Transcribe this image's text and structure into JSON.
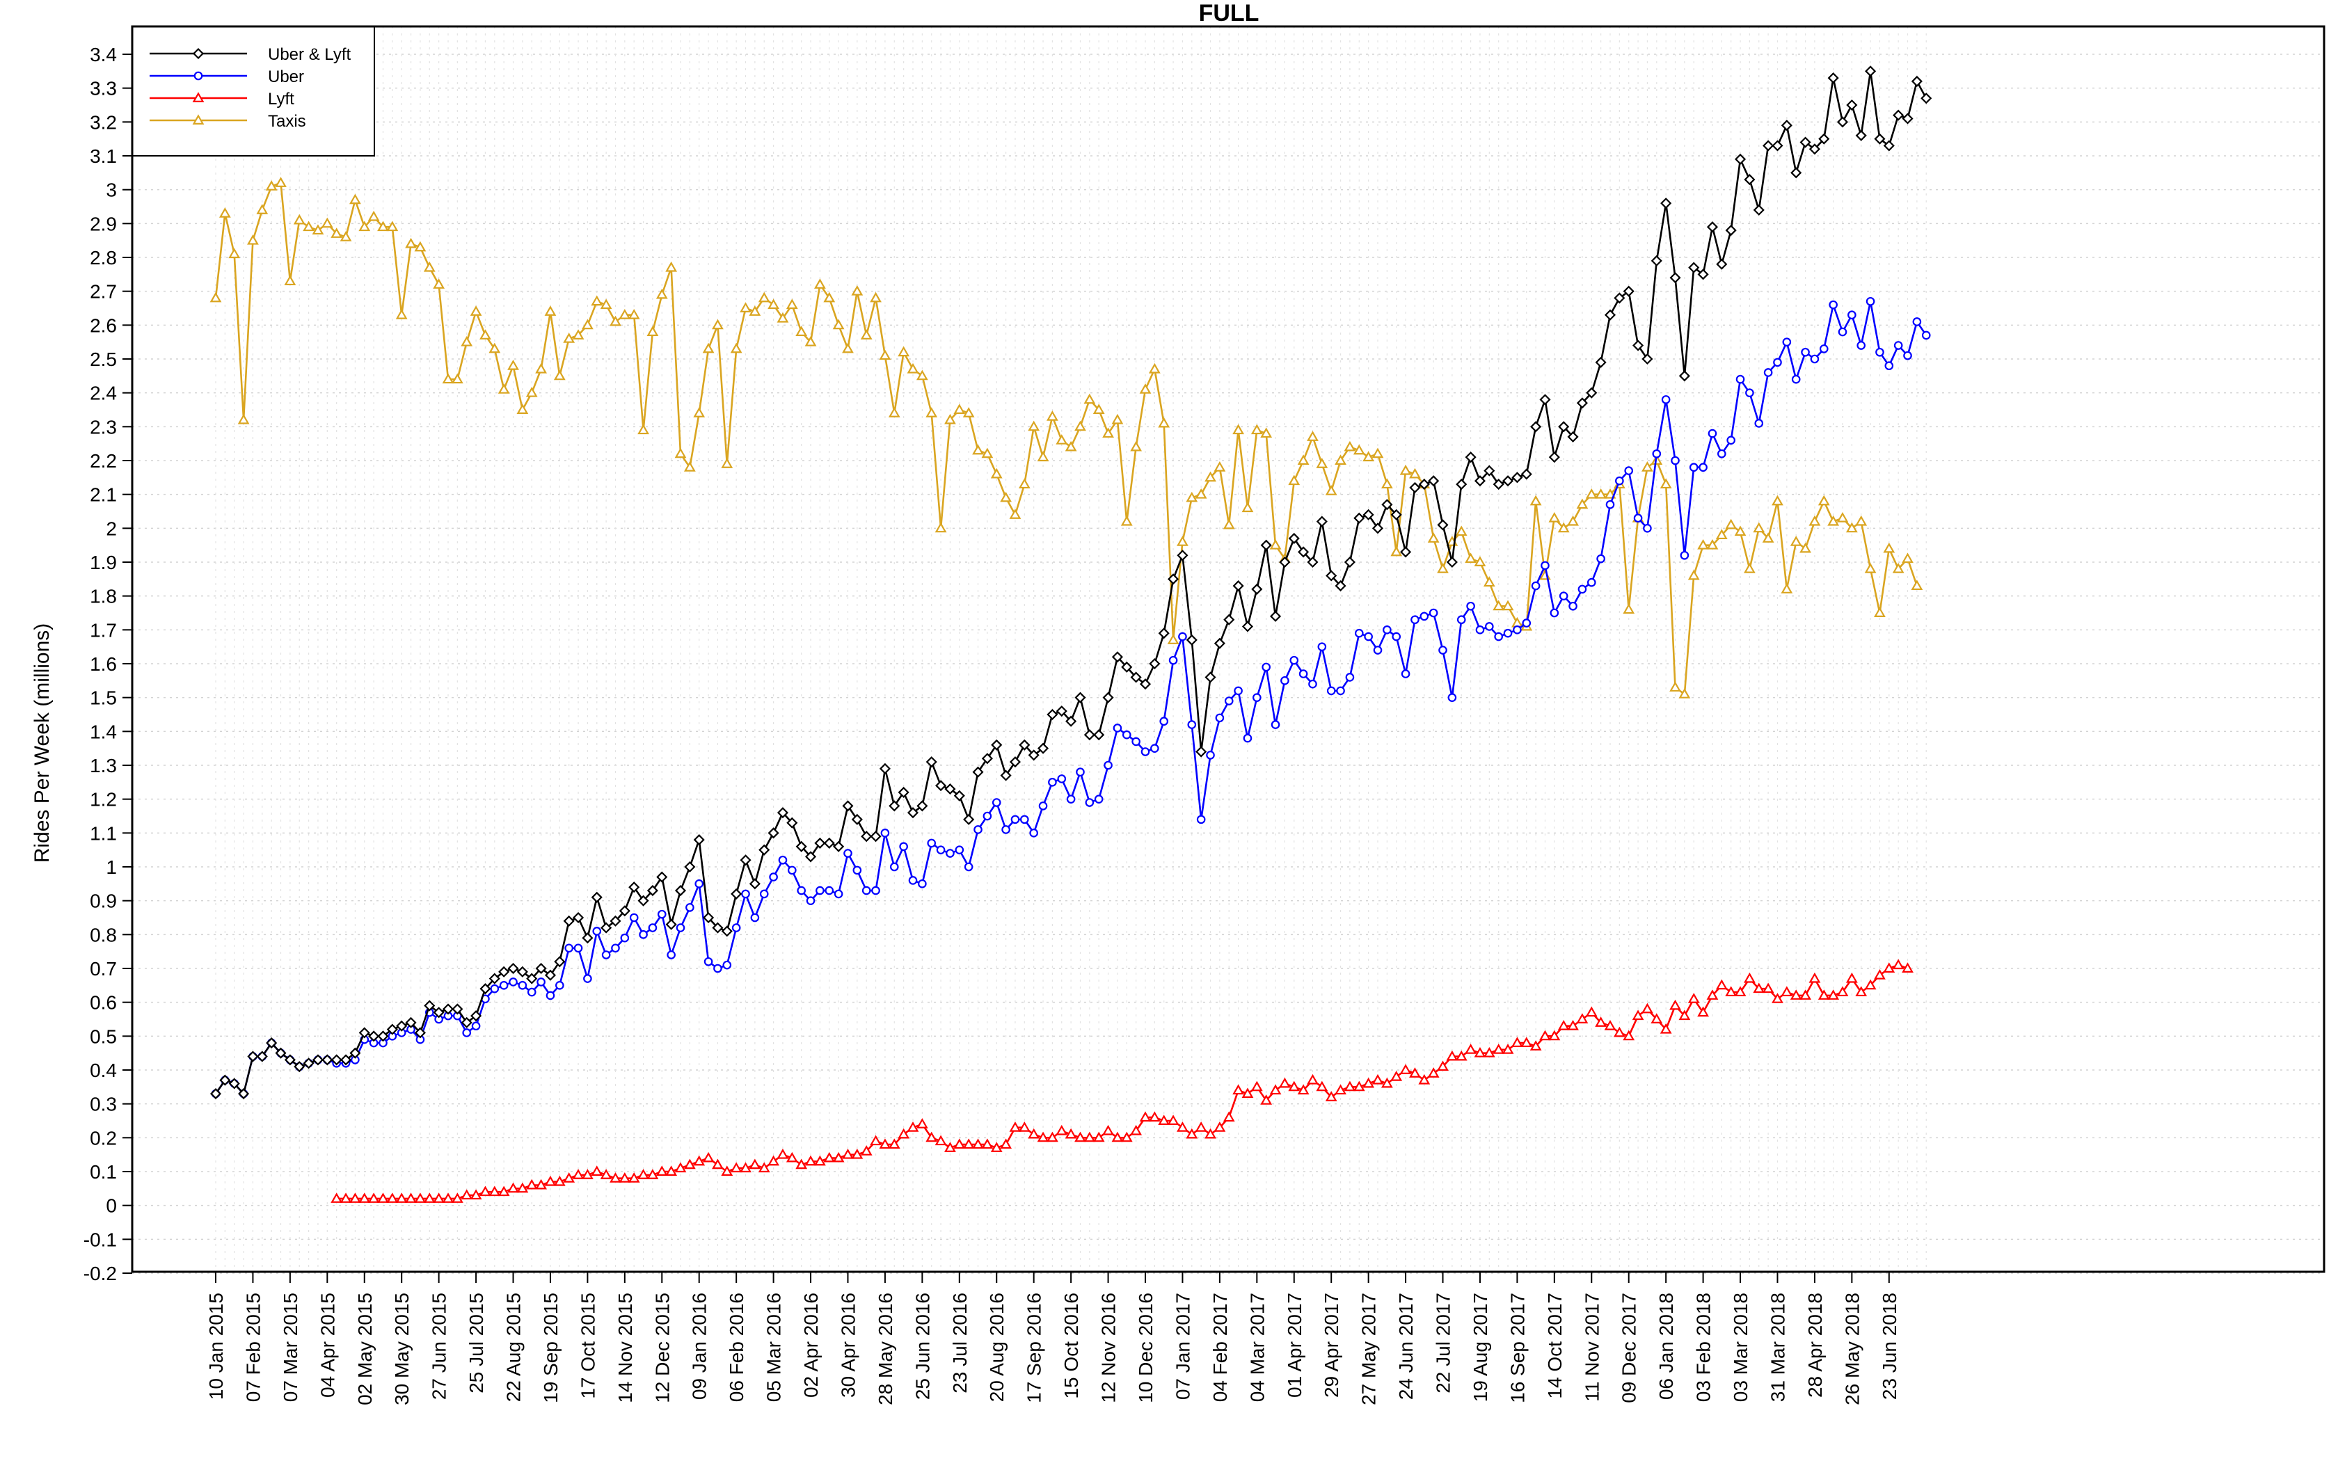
{
  "chart_data": {
    "type": "line",
    "title": "FULL",
    "xlabel": "",
    "ylabel": "Rides Per Week (millions)",
    "ylim": [
      -0.2,
      3.4
    ],
    "yticks": [
      -0.2,
      -0.1,
      0,
      0.1,
      0.2,
      0.3,
      0.4,
      0.5,
      0.6,
      0.7,
      0.8,
      0.9,
      1,
      1.1,
      1.2,
      1.3,
      1.4,
      1.5,
      1.6,
      1.7,
      1.8,
      1.9,
      2,
      2.1,
      2.2,
      2.3,
      2.4,
      2.5,
      2.6,
      2.7,
      2.8,
      2.9,
      3,
      3.1,
      3.2,
      3.3,
      3.4
    ],
    "grid": true,
    "legend_position": "top-left",
    "x_start": "10 Jan 2015",
    "x_interval": "weekly",
    "x_tick_labels": [
      "10 Jan 2015",
      "07 Feb 2015",
      "07 Mar 2015",
      "04 Apr 2015",
      "02 May 2015",
      "30 May 2015",
      "27 Jun 2015",
      "25 Jul 2015",
      "22 Aug 2015",
      "19 Sep 2015",
      "17 Oct 2015",
      "14 Nov 2015",
      "12 Dec 2015",
      "09 Jan 2016",
      "06 Feb 2016",
      "05 Mar 2016",
      "02 Apr 2016",
      "30 Apr 2016",
      "28 May 2016",
      "25 Jun 2016",
      "23 Jul 2016",
      "20 Aug 2016",
      "17 Sep 2016",
      "15 Oct 2016",
      "12 Nov 2016",
      "10 Dec 2016",
      "07 Jan 2017",
      "04 Feb 2017",
      "04 Mar 2017",
      "01 Apr 2017",
      "29 Apr 2017",
      "27 May 2017",
      "24 Jun 2017",
      "22 Jul 2017",
      "19 Aug 2017",
      "16 Sep 2017",
      "14 Oct 2017",
      "11 Nov 2017",
      "09 Dec 2017",
      "06 Jan 2018",
      "03 Feb 2018",
      "03 Mar 2018",
      "31 Mar 2018",
      "28 Apr 2018",
      "26 May 2018",
      "23 Jun 2018"
    ],
    "series": [
      {
        "name": "Uber & Lyft",
        "color": "#000000",
        "marker": "diamond",
        "values": [
          0.33,
          0.37,
          0.36,
          0.33,
          0.44,
          0.44,
          0.48,
          0.45,
          0.43,
          0.41,
          0.42,
          0.43,
          0.43,
          0.43,
          0.43,
          0.45,
          0.51,
          0.5,
          0.5,
          0.52,
          0.53,
          0.54,
          0.51,
          0.59,
          0.57,
          0.58,
          0.58,
          0.54,
          0.56,
          0.64,
          0.67,
          0.69,
          0.7,
          0.69,
          0.67,
          0.7,
          0.68,
          0.72,
          0.84,
          0.85,
          0.79,
          0.91,
          0.82,
          0.84,
          0.87,
          0.94,
          0.9,
          0.93,
          0.97,
          0.83,
          0.93,
          1.0,
          1.08,
          0.85,
          0.82,
          0.81,
          0.92,
          1.02,
          0.95,
          1.05,
          1.1,
          1.16,
          1.13,
          1.06,
          1.03,
          1.07,
          1.07,
          1.06,
          1.18,
          1.14,
          1.09,
          1.09,
          1.29,
          1.18,
          1.22,
          1.16,
          1.18,
          1.31,
          1.24,
          1.23,
          1.21,
          1.14,
          1.28,
          1.32,
          1.36,
          1.27,
          1.31,
          1.36,
          1.33,
          1.35,
          1.45,
          1.46,
          1.43,
          1.5,
          1.39,
          1.39,
          1.5,
          1.62,
          1.59,
          1.56,
          1.54,
          1.6,
          1.69,
          1.85,
          1.92,
          1.67,
          1.34,
          1.56,
          1.66,
          1.73,
          1.83,
          1.71,
          1.82,
          1.95,
          1.74,
          1.9,
          1.97,
          1.93,
          1.9,
          2.02,
          1.86,
          1.83,
          1.9,
          2.03,
          2.04,
          2.0,
          2.07,
          2.04,
          1.93,
          2.12,
          2.13,
          2.14,
          2.01,
          1.9,
          2.13,
          2.21,
          2.14,
          2.17,
          2.13,
          2.14,
          2.15,
          2.16,
          2.3,
          2.38,
          2.21,
          2.3,
          2.27,
          2.37,
          2.4,
          2.49,
          2.63,
          2.68,
          2.7,
          2.54,
          2.5,
          2.79,
          2.96,
          2.74,
          2.45,
          2.77,
          2.75,
          2.89,
          2.78,
          2.88,
          3.09,
          3.03,
          2.94,
          3.13,
          3.13,
          3.19,
          3.05,
          3.14,
          3.12,
          3.15,
          3.33,
          3.2,
          3.25,
          3.16,
          3.35,
          3.15,
          3.13,
          3.22,
          3.21,
          3.32,
          3.27
        ]
      },
      {
        "name": "Uber",
        "color": "#0000ff",
        "marker": "circle",
        "values": [
          0.33,
          0.37,
          0.36,
          0.33,
          0.44,
          0.44,
          0.48,
          0.45,
          0.43,
          0.41,
          0.42,
          0.43,
          0.43,
          0.42,
          0.42,
          0.43,
          0.49,
          0.48,
          0.48,
          0.5,
          0.51,
          0.52,
          0.49,
          0.57,
          0.55,
          0.56,
          0.56,
          0.51,
          0.53,
          0.61,
          0.64,
          0.65,
          0.66,
          0.65,
          0.63,
          0.66,
          0.62,
          0.65,
          0.76,
          0.76,
          0.67,
          0.81,
          0.74,
          0.76,
          0.79,
          0.85,
          0.8,
          0.82,
          0.86,
          0.74,
          0.82,
          0.88,
          0.95,
          0.72,
          0.7,
          0.71,
          0.82,
          0.92,
          0.85,
          0.92,
          0.97,
          1.02,
          0.99,
          0.93,
          0.9,
          0.93,
          0.93,
          0.92,
          1.04,
          0.99,
          0.93,
          0.93,
          1.1,
          1.0,
          1.06,
          0.96,
          0.95,
          1.07,
          1.05,
          1.04,
          1.05,
          1.0,
          1.11,
          1.15,
          1.19,
          1.11,
          1.14,
          1.14,
          1.1,
          1.18,
          1.25,
          1.26,
          1.2,
          1.28,
          1.19,
          1.2,
          1.3,
          1.41,
          1.39,
          1.37,
          1.34,
          1.35,
          1.43,
          1.61,
          1.68,
          1.42,
          1.14,
          1.33,
          1.44,
          1.49,
          1.52,
          1.38,
          1.5,
          1.59,
          1.42,
          1.55,
          1.61,
          1.57,
          1.54,
          1.65,
          1.52,
          1.52,
          1.56,
          1.69,
          1.68,
          1.64,
          1.7,
          1.68,
          1.57,
          1.73,
          1.74,
          1.75,
          1.64,
          1.5,
          1.73,
          1.77,
          1.7,
          1.71,
          1.68,
          1.69,
          1.7,
          1.72,
          1.83,
          1.89,
          1.75,
          1.8,
          1.77,
          1.82,
          1.84,
          1.91,
          2.07,
          2.14,
          2.17,
          2.03,
          2.0,
          2.22,
          2.38,
          2.2,
          1.92,
          2.18,
          2.18,
          2.28,
          2.22,
          2.26,
          2.44,
          2.4,
          2.31,
          2.46,
          2.49,
          2.55,
          2.44,
          2.52,
          2.5,
          2.53,
          2.66,
          2.58,
          2.63,
          2.54,
          2.67,
          2.52,
          2.48,
          2.54,
          2.51,
          2.61,
          2.57
        ]
      },
      {
        "name": "Lyft",
        "color": "#ff0000",
        "marker": "triangle",
        "values": [
          null,
          null,
          null,
          null,
          null,
          null,
          null,
          null,
          null,
          null,
          null,
          null,
          null,
          0.02,
          0.02,
          0.02,
          0.02,
          0.02,
          0.02,
          0.02,
          0.02,
          0.02,
          0.02,
          0.02,
          0.02,
          0.02,
          0.02,
          0.03,
          0.03,
          0.04,
          0.04,
          0.04,
          0.05,
          0.05,
          0.06,
          0.06,
          0.07,
          0.07,
          0.08,
          0.09,
          0.09,
          0.1,
          0.09,
          0.08,
          0.08,
          0.08,
          0.09,
          0.09,
          0.1,
          0.1,
          0.11,
          0.12,
          0.13,
          0.14,
          0.12,
          0.1,
          0.11,
          0.11,
          0.12,
          0.11,
          0.13,
          0.15,
          0.14,
          0.12,
          0.13,
          0.13,
          0.14,
          0.14,
          0.15,
          0.15,
          0.16,
          0.19,
          0.18,
          0.18,
          0.21,
          0.23,
          0.24,
          0.2,
          0.19,
          0.17,
          0.18,
          0.18,
          0.18,
          0.18,
          0.17,
          0.18,
          0.23,
          0.23,
          0.21,
          0.2,
          0.2,
          0.22,
          0.21,
          0.2,
          0.2,
          0.2,
          0.22,
          0.2,
          0.2,
          0.22,
          0.26,
          0.26,
          0.25,
          0.25,
          0.23,
          0.21,
          0.23,
          0.21,
          0.23,
          0.26,
          0.34,
          0.33,
          0.35,
          0.31,
          0.34,
          0.36,
          0.35,
          0.34,
          0.37,
          0.35,
          0.32,
          0.34,
          0.35,
          0.35,
          0.36,
          0.37,
          0.36,
          0.38,
          0.4,
          0.39,
          0.37,
          0.39,
          0.41,
          0.44,
          0.44,
          0.46,
          0.45,
          0.45,
          0.46,
          0.46,
          0.48,
          0.48,
          0.47,
          0.5,
          0.5,
          0.53,
          0.53,
          0.55,
          0.57,
          0.54,
          0.53,
          0.51,
          0.5,
          0.56,
          0.58,
          0.55,
          0.52,
          0.59,
          0.56,
          0.61,
          0.57,
          0.62,
          0.65,
          0.63,
          0.63,
          0.67,
          0.64,
          0.64,
          0.61,
          0.63,
          0.62,
          0.62,
          0.67,
          0.62,
          0.62,
          0.63,
          0.67,
          0.63,
          0.65,
          0.68,
          0.7,
          0.71,
          0.7
        ]
      },
      {
        "name": "Taxis",
        "color": "#daa520",
        "marker": "triangle",
        "values": [
          2.68,
          2.93,
          2.81,
          2.32,
          2.85,
          2.94,
          3.01,
          3.02,
          2.73,
          2.91,
          2.89,
          2.88,
          2.9,
          2.87,
          2.86,
          2.97,
          2.89,
          2.92,
          2.89,
          2.89,
          2.63,
          2.84,
          2.83,
          2.77,
          2.72,
          2.44,
          2.44,
          2.55,
          2.64,
          2.57,
          2.53,
          2.41,
          2.48,
          2.35,
          2.4,
          2.47,
          2.64,
          2.45,
          2.56,
          2.57,
          2.6,
          2.67,
          2.66,
          2.61,
          2.63,
          2.63,
          2.29,
          2.58,
          2.69,
          2.77,
          2.22,
          2.18,
          2.34,
          2.53,
          2.6,
          2.19,
          2.53,
          2.65,
          2.64,
          2.68,
          2.66,
          2.62,
          2.66,
          2.58,
          2.55,
          2.72,
          2.68,
          2.6,
          2.53,
          2.7,
          2.57,
          2.68,
          2.51,
          2.34,
          2.52,
          2.47,
          2.45,
          2.34,
          2.0,
          2.32,
          2.35,
          2.34,
          2.23,
          2.22,
          2.16,
          2.09,
          2.04,
          2.13,
          2.3,
          2.21,
          2.33,
          2.26,
          2.24,
          2.3,
          2.38,
          2.35,
          2.28,
          2.32,
          2.02,
          2.24,
          2.41,
          2.47,
          2.31,
          1.67,
          1.96,
          2.09,
          2.1,
          2.15,
          2.18,
          2.01,
          2.29,
          2.06,
          2.29,
          2.28,
          1.95,
          1.91,
          2.14,
          2.2,
          2.27,
          2.19,
          2.11,
          2.2,
          2.24,
          2.23,
          2.21,
          2.22,
          2.13,
          1.93,
          2.17,
          2.16,
          2.13,
          1.97,
          1.88,
          1.96,
          1.99,
          1.91,
          1.9,
          1.84,
          1.77,
          1.77,
          1.72,
          1.71,
          2.08,
          1.86,
          2.03,
          2.0,
          2.02,
          2.07,
          2.1,
          2.1,
          2.1,
          2.13,
          1.76,
          2.03,
          2.18,
          2.2,
          2.13,
          1.53,
          1.51,
          1.86,
          1.95,
          1.95,
          1.98,
          2.01,
          1.99,
          1.88,
          2.0,
          1.97,
          2.08,
          1.82,
          1.96,
          1.94,
          2.02,
          2.08,
          2.02,
          2.03,
          2.0,
          2.02,
          1.88,
          1.75,
          1.94,
          1.88,
          1.91,
          1.83
        ]
      }
    ]
  }
}
